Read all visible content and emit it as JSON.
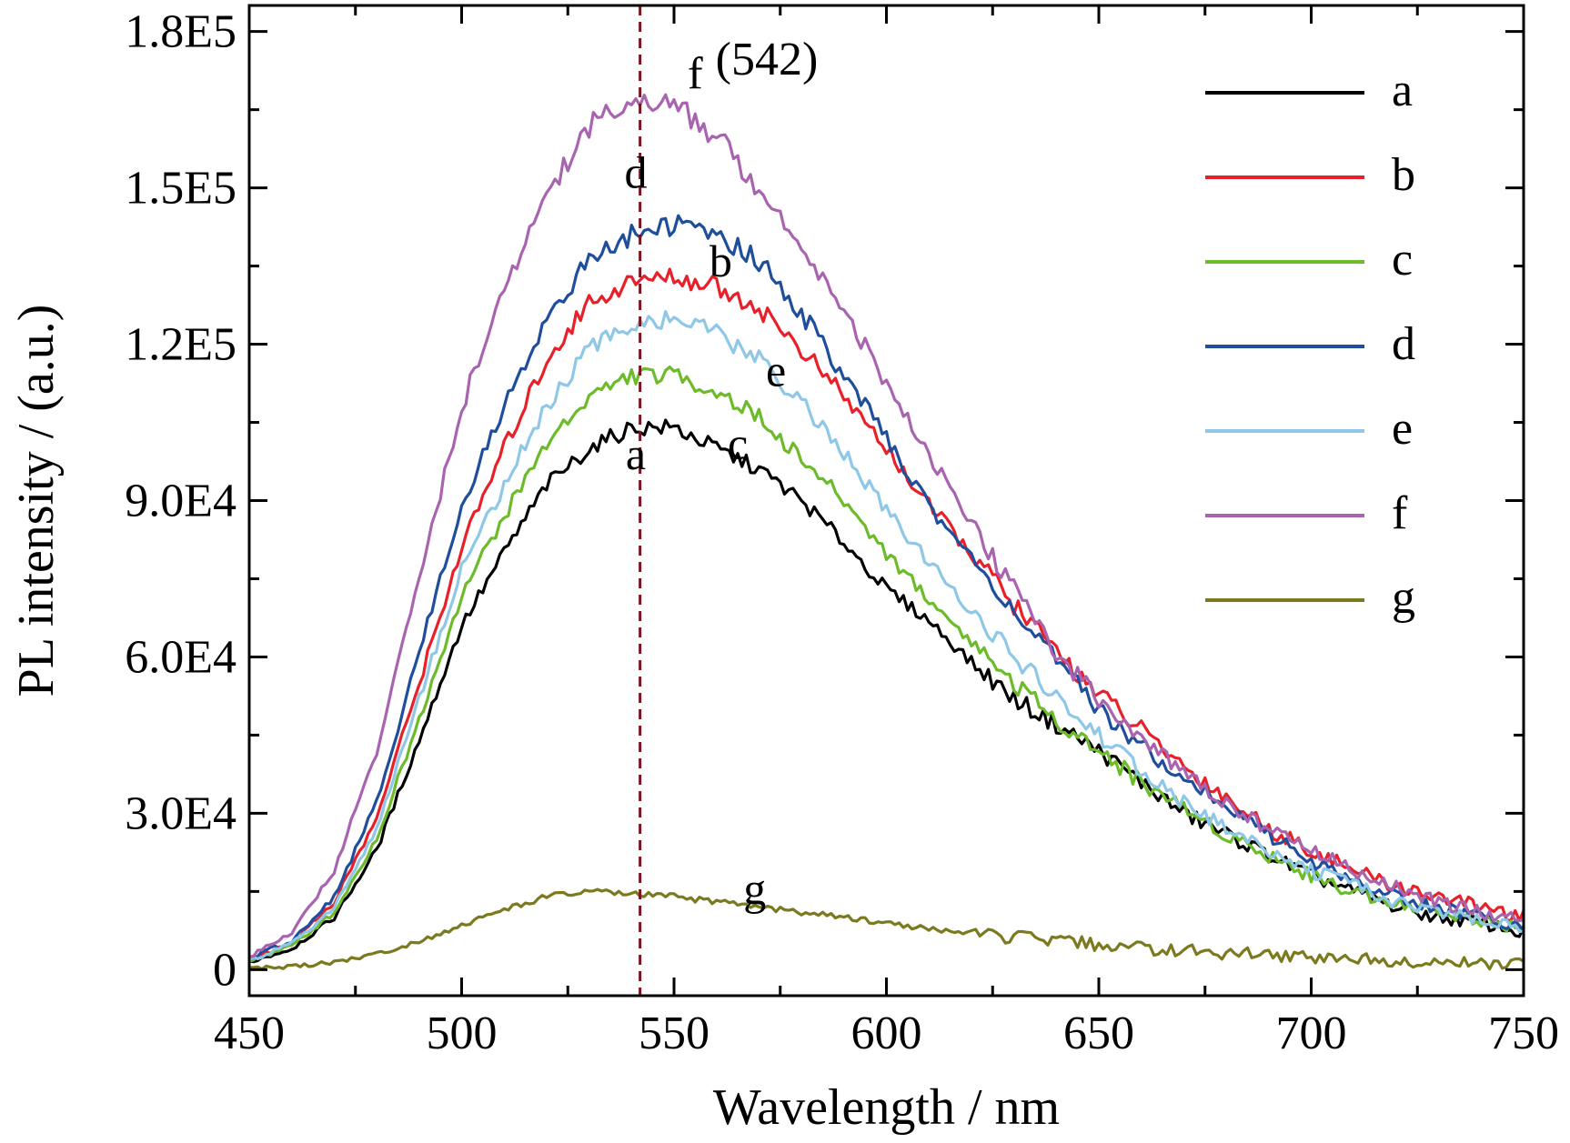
{
  "chart_data": {
    "type": "line",
    "xlabel": "Wavelength / nm",
    "ylabel": "PL intensity / (a.u.)",
    "xlim": [
      450,
      750
    ],
    "ylim": [
      -5000,
      185000
    ],
    "x_ticks": [
      450,
      500,
      550,
      600,
      650,
      700,
      750
    ],
    "x_tick_labels": [
      "450",
      "500",
      "550",
      "600",
      "650",
      "700",
      "750"
    ],
    "y_ticks": [
      0,
      30000,
      60000,
      90000,
      120000,
      150000,
      180000
    ],
    "y_tick_labels": [
      "0",
      "3.0E4",
      "6.0E4",
      "9.0E4",
      "1.2E5",
      "1.5E5",
      "1.8E5"
    ],
    "grid": false,
    "legend_position": "top-right",
    "x": [
      450,
      460,
      470,
      480,
      490,
      500,
      510,
      520,
      530,
      540,
      550,
      560,
      570,
      580,
      590,
      600,
      610,
      620,
      630,
      640,
      650,
      660,
      670,
      680,
      690,
      700,
      710,
      720,
      730,
      740,
      750
    ],
    "series": [
      {
        "name": "a",
        "color": "#000000",
        "values": [
          1500,
          4000,
          10000,
          23000,
          44000,
          66000,
          80000,
          93000,
          100000,
          104000,
          104000,
          100000,
          96000,
          90000,
          82000,
          73000,
          67000,
          59000,
          52000,
          47000,
          42000,
          36000,
          30000,
          26000,
          22000,
          18000,
          15000,
          12000,
          10000,
          9000,
          7000
        ]
      },
      {
        "name": "b",
        "color": "#e8202a",
        "values": [
          2000,
          5000,
          13000,
          29000,
          55000,
          81000,
          100000,
          117000,
          128000,
          132000,
          133000,
          131000,
          127000,
          119000,
          110000,
          100000,
          89000,
          80000,
          70000,
          61000,
          53000,
          46000,
          39000,
          33000,
          27000,
          23000,
          19000,
          16000,
          14000,
          12000,
          10000
        ]
      },
      {
        "name": "c",
        "color": "#6cbb2a",
        "values": [
          1700,
          4500,
          11000,
          25000,
          48000,
          72000,
          87000,
          101000,
          110000,
          114000,
          114000,
          111000,
          106000,
          98000,
          90000,
          80000,
          71000,
          63000,
          55000,
          48000,
          42000,
          36000,
          31000,
          26000,
          22000,
          18000,
          15000,
          13000,
          11000,
          9500,
          8000
        ]
      },
      {
        "name": "d",
        "color": "#1f4e9c",
        "values": [
          2200,
          5500,
          14000,
          32000,
          61000,
          89000,
          108000,
          125000,
          136000,
          141000,
          143000,
          141000,
          136000,
          126000,
          114000,
          102000,
          89000,
          79000,
          69000,
          59000,
          50000,
          43000,
          37000,
          31000,
          26000,
          21000,
          17000,
          14000,
          12000,
          10000,
          8500
        ]
      },
      {
        "name": "e",
        "color": "#8fc8e6",
        "values": [
          1900,
          4800,
          12000,
          27000,
          52000,
          77000,
          93000,
          108000,
          119000,
          124000,
          125000,
          122000,
          117000,
          109000,
          99000,
          88000,
          78000,
          69000,
          60000,
          52000,
          45000,
          38000,
          32000,
          27000,
          23000,
          19000,
          16000,
          13000,
          11000,
          9500,
          8000
        ]
      },
      {
        "name": "f",
        "color": "#a964b0",
        "values": [
          2500,
          7000,
          19000,
          42000,
          75000,
          108000,
          130000,
          149000,
          162000,
          167000,
          166000,
          160000,
          150000,
          139000,
          127000,
          112000,
          99000,
          85000,
          73000,
          61000,
          52000,
          44000,
          38000,
          32000,
          27000,
          23000,
          19000,
          16000,
          13000,
          11000,
          9500
        ]
      },
      {
        "name": "g",
        "color": "#7b7a1e",
        "values": [
          200,
          600,
          1500,
          3000,
          5500,
          8500,
          11500,
          14000,
          15000,
          14500,
          14000,
          13000,
          12000,
          11000,
          10000,
          9000,
          7800,
          7000,
          6200,
          5500,
          4800,
          4100,
          3600,
          3200,
          2800,
          2400,
          2100,
          1800,
          1500,
          1200,
          1000
        ]
      }
    ],
    "curve_labels": [
      {
        "text": "f",
        "x": 555,
        "y": 169000
      },
      {
        "text": "d",
        "x": 541,
        "y": 150000
      },
      {
        "text": "b",
        "x": 561,
        "y": 133000
      },
      {
        "text": "e",
        "x": 574,
        "y": 112000
      },
      {
        "text": "a",
        "x": 541,
        "y": 96000
      },
      {
        "text": "c",
        "x": 565,
        "y": 98000
      },
      {
        "text": "g",
        "x": 569,
        "y": 12500
      }
    ],
    "reference_line": {
      "x": 542,
      "label": "(542)",
      "color": "#7a1420"
    }
  }
}
